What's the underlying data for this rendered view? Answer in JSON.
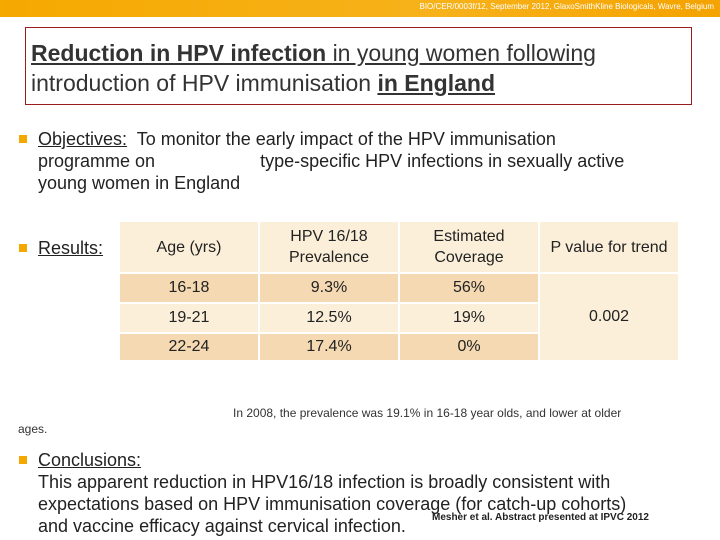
{
  "header": {
    "text": "BIO/CER/0003f/12, September 2012, GlaxoSmithKline Biologicals, Wavre, Belgium"
  },
  "title": {
    "part1": "Reduction in HPV infection ",
    "part2": "in young women following",
    "part3": "introduction of HPV immunisation ",
    "part4": "in England"
  },
  "objectives": {
    "label": "Objectives:",
    "line1_rest": "  To monitor the early impact of the HPV immunisation",
    "line2": "programme on                     type-specific HPV infections in sexually active",
    "line3": "young women in England"
  },
  "results": {
    "label": "Results:"
  },
  "table": {
    "headers": [
      "Age (yrs)",
      "HPV 16/18 Prevalence",
      "Estimated Coverage",
      "P value for trend"
    ],
    "rows": [
      [
        "16-18",
        "9.3%",
        "56%"
      ],
      [
        "19-21",
        "12.5%",
        "19%"
      ],
      [
        "22-24",
        "17.4%",
        "0%"
      ]
    ],
    "p_value": "0.002"
  },
  "note": "In 2008, the prevalence was 19.1% in 16-18 year olds, and lower at older",
  "ages": "ages.",
  "conclusions": {
    "label": "Conclusions:",
    "line1": "This apparent reduction in HPV16/18 infection is broadly consistent with",
    "line2": "expectations based on HPV immunisation coverage (for catch-up cohorts)",
    "line3": "and vaccine efficacy against cervical infection."
  },
  "citation": "Mesher et al. Abstract presented at IPVC 2012",
  "colors": {
    "accent": "#f5a800",
    "title_border": "#9b1c1c",
    "row_dark": "#f4d9b2",
    "row_light": "#fbefd9"
  }
}
